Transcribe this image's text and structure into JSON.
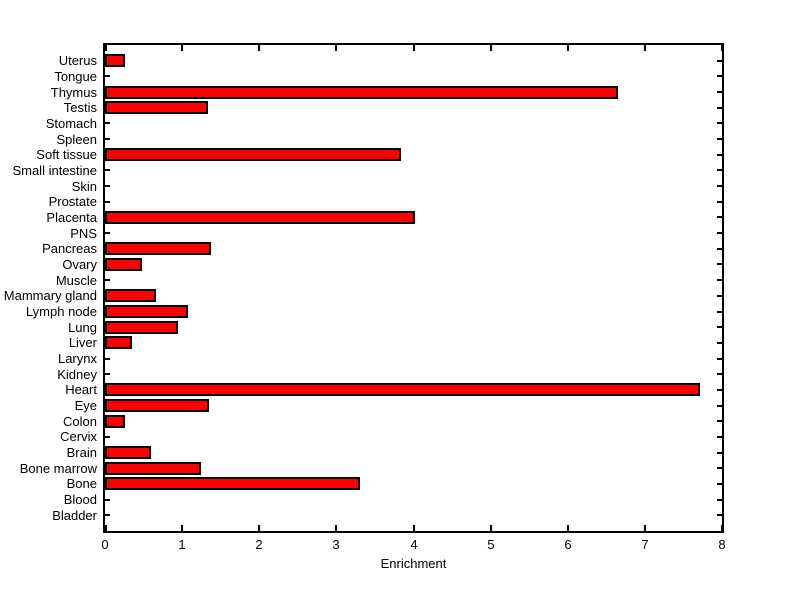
{
  "chart_data": {
    "type": "bar",
    "orientation": "horizontal",
    "xlabel": "Enrichment",
    "categories": [
      "Uterus",
      "Tongue",
      "Thymus",
      "Testis",
      "Stomach",
      "Spleen",
      "Soft tissue",
      "Small intestine",
      "Skin",
      "Prostate",
      "Placenta",
      "PNS",
      "Pancreas",
      "Ovary",
      "Muscle",
      "Mammary gland",
      "Lymph node",
      "Lung",
      "Liver",
      "Larynx",
      "Kidney",
      "Heart",
      "Eye",
      "Colon",
      "Cervix",
      "Brain",
      "Bone marrow",
      "Bone",
      "Blood",
      "Bladder"
    ],
    "values": [
      0.26,
      0,
      6.65,
      1.34,
      0,
      0,
      3.84,
      0,
      0,
      0,
      4.02,
      0,
      1.38,
      0.48,
      0,
      0.66,
      1.07,
      0.95,
      0.35,
      0,
      0,
      7.72,
      1.35,
      0.26,
      0,
      0.59,
      1.25,
      3.31,
      0,
      0
    ],
    "xlim": [
      0,
      8
    ],
    "xticks": [
      0,
      1,
      2,
      3,
      4,
      5,
      6,
      7,
      8
    ],
    "bar_color": "#ff0000",
    "bar_edge_color": "#000000",
    "axis_color": "#000000",
    "background_color": "#ffffff",
    "grid": false,
    "legend": "none"
  }
}
